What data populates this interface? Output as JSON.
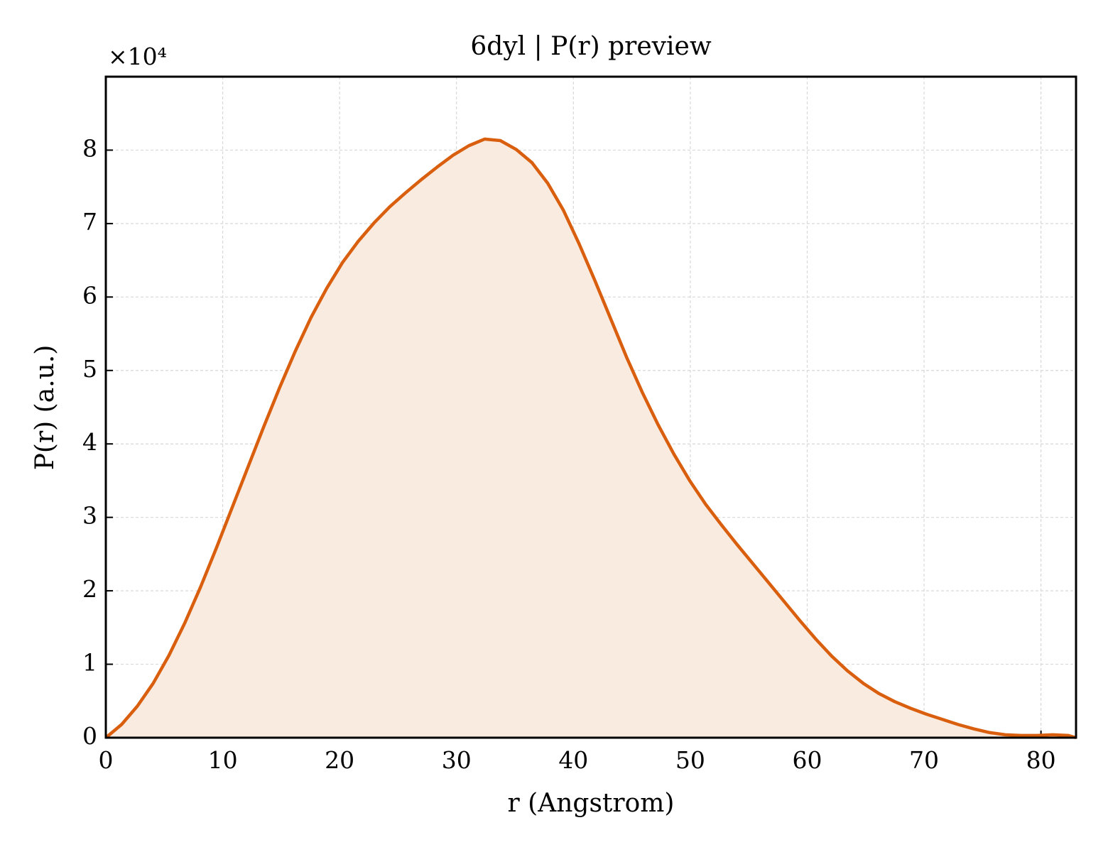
{
  "chart_data": {
    "type": "line",
    "title": "6dyl | P(r) preview",
    "xlabel": "r (Angstrom)",
    "ylabel": "P(r) (a.u.)",
    "y_offset_label": "×10⁴",
    "x": [
      0,
      1.35,
      2.7,
      4.05,
      5.4,
      6.75,
      8.1,
      9.45,
      10.8,
      12.15,
      13.5,
      14.85,
      16.2,
      17.55,
      18.9,
      20.25,
      21.6,
      22.95,
      24.3,
      25.65,
      27.0,
      28.35,
      29.7,
      31.05,
      32.4,
      33.75,
      35.1,
      36.45,
      37.8,
      39.15,
      40.5,
      41.85,
      43.2,
      44.55,
      45.9,
      47.25,
      48.6,
      49.95,
      51.3,
      52.65,
      54.0,
      55.35,
      56.7,
      58.05,
      59.4,
      60.75,
      62.1,
      63.45,
      64.8,
      66.15,
      67.5,
      68.85,
      70.2,
      71.55,
      72.9,
      74.25,
      75.6,
      76.95,
      78.3,
      79.65,
      81.0,
      82.35,
      83
    ],
    "values": [
      0,
      0.18,
      0.43,
      0.74,
      1.12,
      1.56,
      2.05,
      2.58,
      3.13,
      3.68,
      4.23,
      4.76,
      5.26,
      5.72,
      6.12,
      6.47,
      6.76,
      7.01,
      7.23,
      7.42,
      7.6,
      7.77,
      7.93,
      8.06,
      8.15,
      8.13,
      8.01,
      7.83,
      7.55,
      7.18,
      6.72,
      6.22,
      5.7,
      5.18,
      4.7,
      4.26,
      3.86,
      3.5,
      3.18,
      2.9,
      2.63,
      2.37,
      2.11,
      1.85,
      1.59,
      1.34,
      1.11,
      0.91,
      0.74,
      0.6,
      0.49,
      0.4,
      0.32,
      0.25,
      0.18,
      0.12,
      0.07,
      0.04,
      0.03,
      0.03,
      0.04,
      0.03,
      0
    ],
    "color": "#d95f0e",
    "fill_color": "#f9ebe0",
    "fill": true,
    "xlim": [
      0,
      83
    ],
    "xticks": [
      0,
      10,
      20,
      30,
      40,
      50,
      60,
      70,
      80
    ],
    "ylim": [
      0,
      9
    ],
    "yticks": [
      0,
      1,
      2,
      3,
      4,
      5,
      6,
      7,
      8
    ],
    "grid": true
  }
}
